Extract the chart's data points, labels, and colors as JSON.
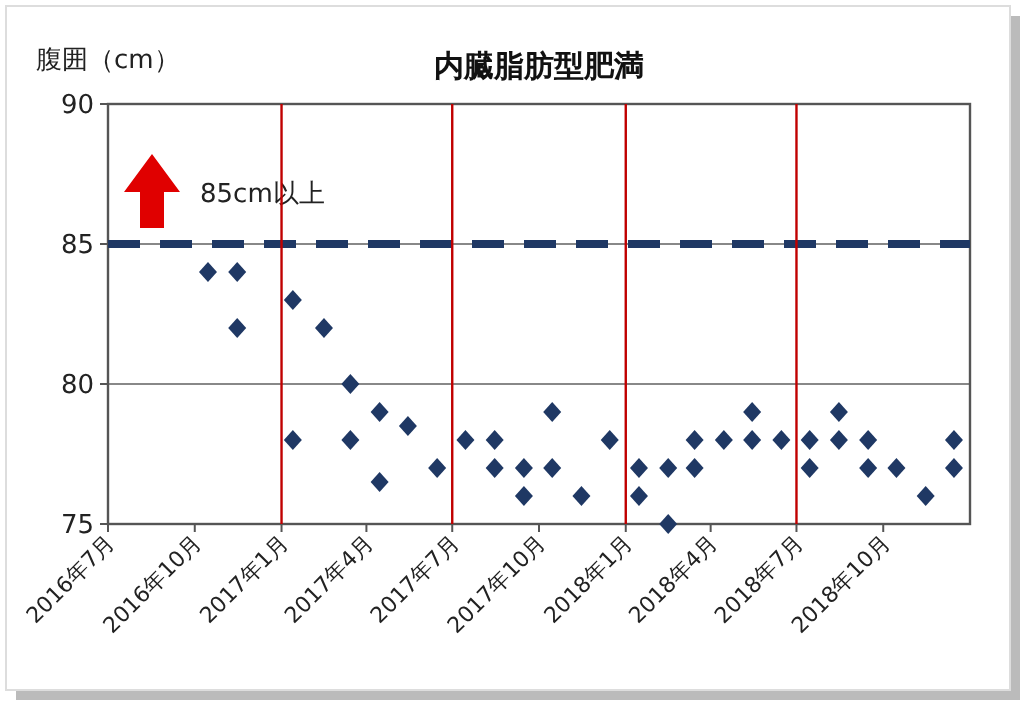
{
  "chart_data": {
    "type": "scatter",
    "title": "内臓脂肪型肥満",
    "ylabel": "腹囲（cm）",
    "series": [
      {
        "color": "#1f3864",
        "x": [
          "2016-10-15",
          "2016-11-15",
          "2016-11-15",
          "2017-01-13",
          "2017-01-13",
          "2017-02-15",
          "2017-03-15",
          "2017-03-15",
          "2017-04-15",
          "2017-04-15",
          "2017-05-15",
          "2017-06-15",
          "2017-07-15",
          "2017-08-15",
          "2017-08-15",
          "2017-09-15",
          "2017-09-15",
          "2017-10-15",
          "2017-10-15",
          "2017-11-15",
          "2017-12-15",
          "2018-01-15",
          "2018-01-15",
          "2018-02-15",
          "2018-02-15",
          "2018-03-15",
          "2018-03-15",
          "2018-04-15",
          "2018-05-15",
          "2018-05-15",
          "2018-06-15",
          "2018-07-15",
          "2018-07-15",
          "2018-08-15",
          "2018-08-15",
          "2018-09-15",
          "2018-09-15",
          "2018-10-15",
          "2018-11-15",
          "2018-12-15",
          "2018-12-15"
        ],
        "values": [
          84,
          84,
          82,
          83,
          78,
          82,
          80,
          78,
          79,
          76.5,
          78.5,
          77,
          78,
          78,
          77,
          77,
          76,
          79,
          77,
          76,
          78,
          77,
          76,
          77,
          75,
          78,
          77,
          78,
          79,
          78,
          78,
          78,
          77,
          79,
          78,
          78,
          77,
          77,
          76,
          78,
          77
        ]
      }
    ],
    "marker": "diamond",
    "grid": "y",
    "xlim": [
      "2016-07",
      "2019-01"
    ],
    "xticks": [
      {
        "value": "2016-07",
        "label": "2016年7月"
      },
      {
        "value": "2016-10",
        "label": "2016年10月"
      },
      {
        "value": "2017-01",
        "label": "2017年1月"
      },
      {
        "value": "2017-04",
        "label": "2017年4月"
      },
      {
        "value": "2017-07",
        "label": "2017年7月"
      },
      {
        "value": "2017-10",
        "label": "2017年10月"
      },
      {
        "value": "2018-01",
        "label": "2018年1月"
      },
      {
        "value": "2018-04",
        "label": "2018年4月"
      },
      {
        "value": "2018-07",
        "label": "2018年7月"
      },
      {
        "value": "2018-10",
        "label": "2018年10月"
      }
    ],
    "ylim": [
      75,
      90
    ],
    "yticks": [
      75,
      80,
      85,
      90
    ],
    "ref_lines": [
      {
        "axis": "y",
        "value": 85,
        "label": "85cm以上",
        "color": "#1f3864",
        "line_style": "dashed"
      },
      {
        "axis": "x",
        "value": "2017-01",
        "color": "#c00000"
      },
      {
        "axis": "x",
        "value": "2017-07",
        "color": "#c00000"
      },
      {
        "axis": "x",
        "value": "2018-01",
        "color": "#c00000"
      },
      {
        "axis": "x",
        "value": "2018-07",
        "color": "#c00000"
      }
    ]
  }
}
